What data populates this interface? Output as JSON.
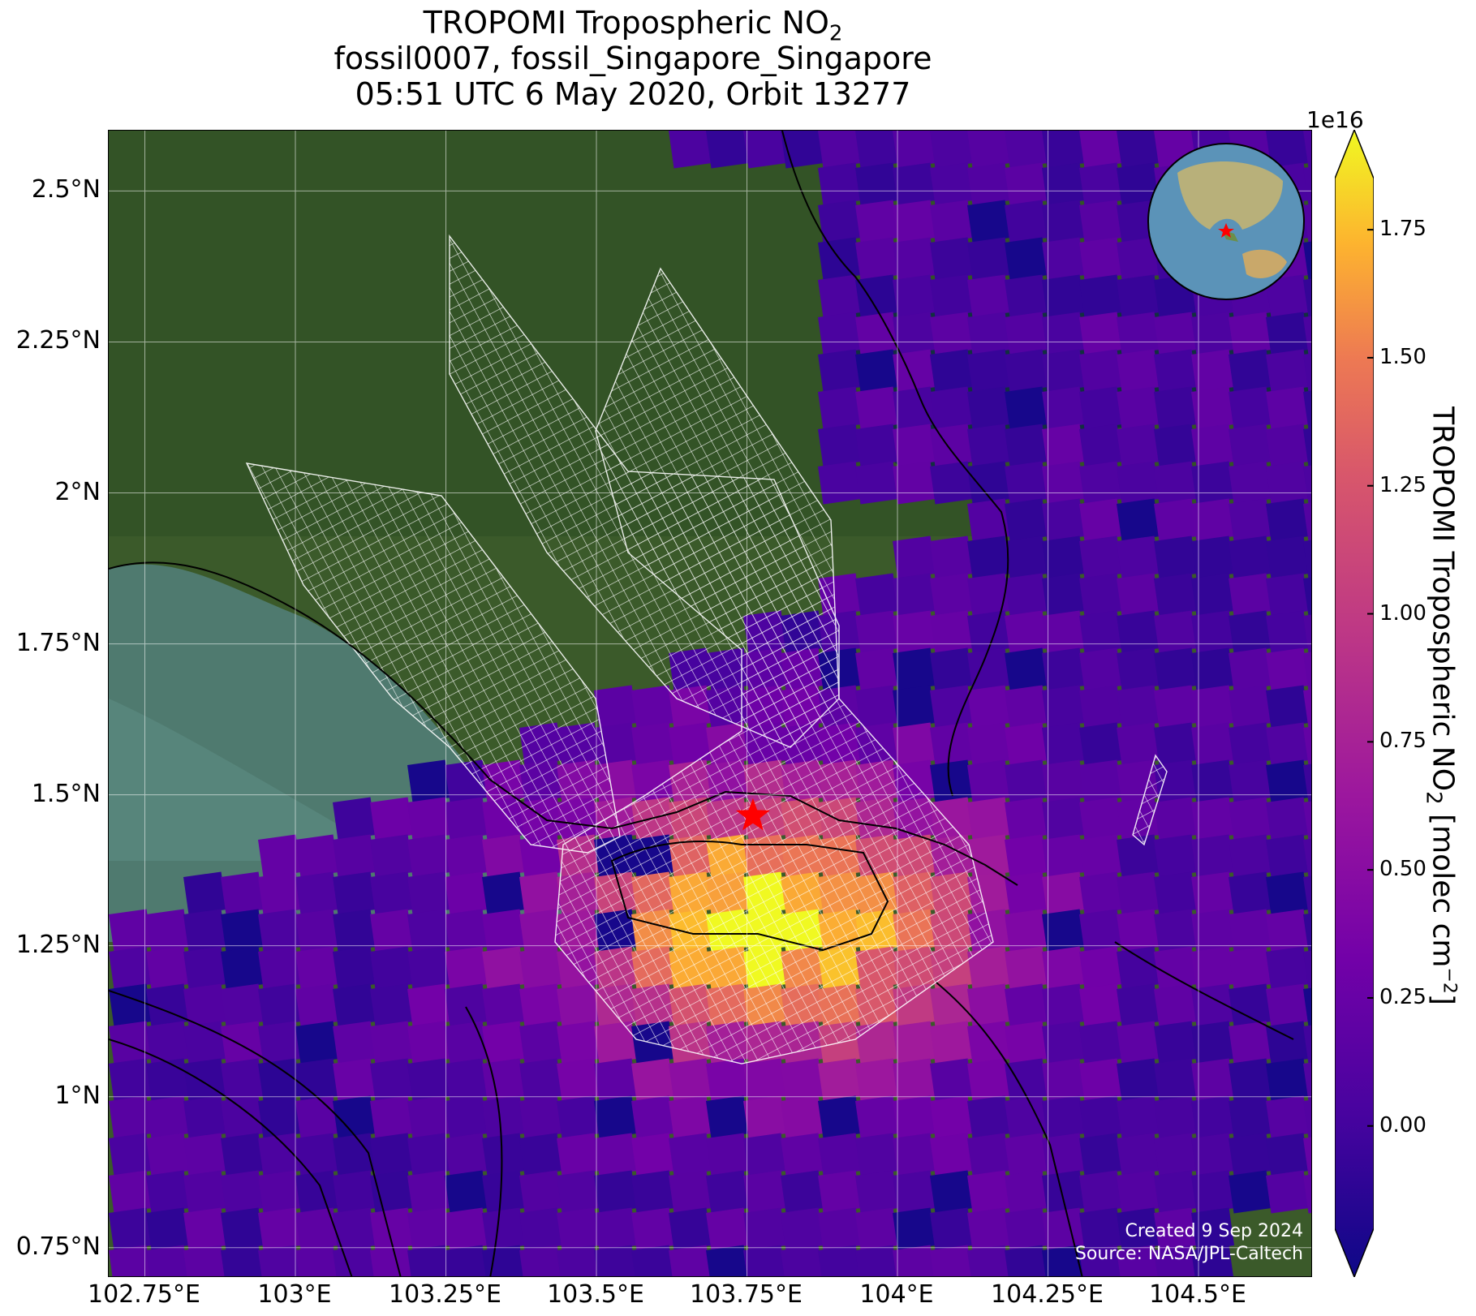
{
  "title": {
    "line1_prefix": "TROPOMI Tropospheric NO",
    "line1_sub": "2",
    "line2": "fossil0007, fossil_Singapore_Singapore",
    "line3": "05:51 UTC 6 May 2020, Orbit 13277"
  },
  "map": {
    "extent": {
      "lon_min": 102.69,
      "lon_max": 104.69,
      "lat_min": 0.7,
      "lat_max": 2.6
    },
    "target_marker": {
      "icon": "red-star-icon",
      "lon": 103.76,
      "lat": 1.465,
      "color": "#ff0000"
    },
    "lat_ticks": [
      {
        "value": 2.5,
        "label": "2.5°N"
      },
      {
        "value": 2.25,
        "label": "2.25°N"
      },
      {
        "value": 2.0,
        "label": "2°N"
      },
      {
        "value": 1.75,
        "label": "1.75°N"
      },
      {
        "value": 1.5,
        "label": "1.5°N"
      },
      {
        "value": 1.25,
        "label": "1.25°N"
      },
      {
        "value": 1.0,
        "label": "1°N"
      },
      {
        "value": 0.75,
        "label": "0.75°N"
      }
    ],
    "lon_ticks": [
      {
        "value": 102.75,
        "label": "102.75°E"
      },
      {
        "value": 103.0,
        "label": "103°E"
      },
      {
        "value": 103.25,
        "label": "103.25°E"
      },
      {
        "value": 103.5,
        "label": "103.5°E"
      },
      {
        "value": 103.75,
        "label": "103.75°E"
      },
      {
        "value": 104.0,
        "label": "104°E"
      },
      {
        "value": 104.25,
        "label": "104.25°E"
      },
      {
        "value": 104.5,
        "label": "104.5°E"
      }
    ],
    "gridlines": true,
    "colormap": "plasma",
    "overlay": "NO2 pixels with white target-mode footprint grid"
  },
  "colorbar": {
    "label_prefix": "TROPOMI Tropospheric NO",
    "label_sub": "2",
    "label_suffix": " [molec cm",
    "label_sup": "−2",
    "label_end": "]",
    "exponent": "1e16",
    "vmin": -0.2,
    "vmax": 1.85,
    "extend": "both",
    "ticks": [
      {
        "value": 0.0,
        "label": "0.00"
      },
      {
        "value": 0.25,
        "label": "0.25"
      },
      {
        "value": 0.5,
        "label": "0.50"
      },
      {
        "value": 0.75,
        "label": "0.75"
      },
      {
        "value": 1.0,
        "label": "1.00"
      },
      {
        "value": 1.25,
        "label": "1.25"
      },
      {
        "value": 1.5,
        "label": "1.50"
      },
      {
        "value": 1.75,
        "label": "1.75"
      }
    ]
  },
  "credit": {
    "created": "Created 9 Sep 2024",
    "source": "Source: NASA/JPL-Caltech"
  },
  "inset": {
    "icon": "globe-locator-icon",
    "marker": "red-star-icon"
  }
}
